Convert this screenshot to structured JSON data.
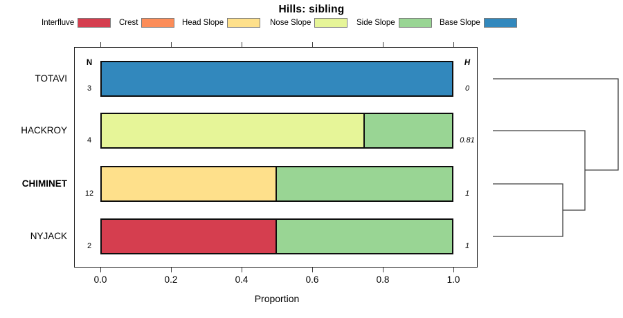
{
  "title": "Hills: sibling",
  "columns": {
    "n_header": "N",
    "h_header": "H"
  },
  "axis": {
    "xlabel": "Proportion",
    "tick_labels": [
      "0.0",
      "0.2",
      "0.4",
      "0.6",
      "0.8",
      "1.0"
    ],
    "tick_values": [
      0,
      0.2,
      0.4,
      0.6,
      0.8,
      1.0
    ]
  },
  "legend": [
    {
      "label": "Interfluve",
      "color": "#d53e4f"
    },
    {
      "label": "Crest",
      "color": "#fc8d59"
    },
    {
      "label": "Head Slope",
      "color": "#fee08b"
    },
    {
      "label": "Nose Slope",
      "color": "#e6f598"
    },
    {
      "label": "Side Slope",
      "color": "#99d594"
    },
    {
      "label": "Base Slope",
      "color": "#3288bd"
    }
  ],
  "chart_data": {
    "type": "bar",
    "orientation": "horizontal-stacked",
    "title": "Hills: sibling",
    "xlabel": "Proportion",
    "xlim": [
      0,
      1
    ],
    "grid": false,
    "legend_position": "top",
    "categories": [
      "TOTAVI",
      "HACKROY",
      "CHIMINET",
      "NYJACK"
    ],
    "rows": [
      {
        "label": "TOTAVI",
        "bold": false,
        "n": "3",
        "h": "0",
        "segments": [
          {
            "class": "Base Slope",
            "value": 1.0
          }
        ]
      },
      {
        "label": "HACKROY",
        "bold": false,
        "n": "4",
        "h": "0.81",
        "segments": [
          {
            "class": "Nose Slope",
            "value": 0.75
          },
          {
            "class": "Side Slope",
            "value": 0.25
          }
        ]
      },
      {
        "label": "CHIMINET",
        "bold": true,
        "n": "12",
        "h": "1",
        "segments": [
          {
            "class": "Head Slope",
            "value": 0.5
          },
          {
            "class": "Side Slope",
            "value": 0.5
          }
        ]
      },
      {
        "label": "NYJACK",
        "bold": false,
        "n": "2",
        "h": "1",
        "segments": [
          {
            "class": "Interfluve",
            "value": 0.5
          },
          {
            "class": "Side Slope",
            "value": 0.5
          }
        ]
      }
    ],
    "dendrogram": {
      "side": "right",
      "leaf_order": [
        "TOTAVI",
        "HACKROY",
        "CHIMINET",
        "NYJACK"
      ],
      "merges": [
        {
          "join": [
            "CHIMINET",
            "NYJACK"
          ],
          "order": 1
        },
        {
          "join": [
            "HACKROY",
            "(CHIMINET,NYJACK)"
          ],
          "order": 2
        },
        {
          "join": [
            "TOTAVI",
            "(HACKROY,(CHIMINET,NYJACK))"
          ],
          "order": 3
        }
      ],
      "line_color": "#3f3f3f"
    }
  }
}
